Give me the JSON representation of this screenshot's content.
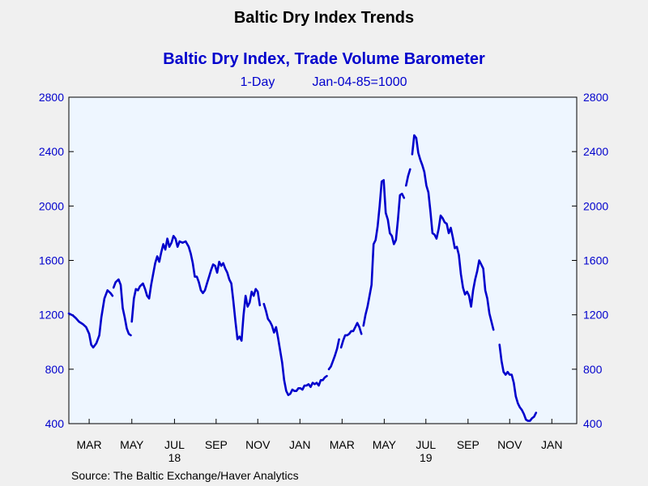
{
  "chart_data": {
    "type": "line",
    "title": "Baltic Dry Index Trends",
    "subtitle": "Baltic Dry Index, Trade Volume Barometer",
    "frequency": "1-Day",
    "base": "Jan-04-85=1000",
    "source": "Source:  The Baltic Exchange/Haver Analytics",
    "ylim": [
      400,
      2800
    ],
    "y_ticks": [
      "400",
      "800",
      "1200",
      "1600",
      "2000",
      "2400",
      "2800"
    ],
    "x_ticks": [
      {
        "label": "MAR",
        "t": 0.04
      },
      {
        "label": "MAY",
        "t": 0.124
      },
      {
        "label": "JUL",
        "t": 0.208
      },
      {
        "label": "SEP",
        "t": 0.29
      },
      {
        "label": "NOV",
        "t": 0.372
      },
      {
        "label": "JAN",
        "t": 0.455
      },
      {
        "label": "MAR",
        "t": 0.538
      },
      {
        "label": "MAY",
        "t": 0.621
      },
      {
        "label": "JUL",
        "t": 0.703
      },
      {
        "label": "SEP",
        "t": 0.786
      },
      {
        "label": "NOV",
        "t": 0.868
      },
      {
        "label": "JAN",
        "t": 0.951
      }
    ],
    "year_labels": [
      {
        "label": "18",
        "t": 0.208
      },
      {
        "label": "19",
        "t": 0.703
      }
    ],
    "series": [
      {
        "color": "#0000cc",
        "segments": [
          [
            [
              0.0,
              1210
            ],
            [
              0.008,
              1195
            ],
            [
              0.014,
              1175
            ],
            [
              0.02,
              1150
            ],
            [
              0.028,
              1130
            ],
            [
              0.034,
              1110
            ],
            [
              0.04,
              1060
            ],
            [
              0.044,
              980
            ],
            [
              0.048,
              960
            ],
            [
              0.054,
              990
            ],
            [
              0.06,
              1050
            ],
            [
              0.064,
              1180
            ],
            [
              0.07,
              1320
            ],
            [
              0.076,
              1380
            ],
            [
              0.082,
              1360
            ],
            [
              0.086,
              1340
            ]
          ],
          [
            [
              0.088,
              1400
            ],
            [
              0.092,
              1440
            ],
            [
              0.098,
              1460
            ],
            [
              0.102,
              1420
            ],
            [
              0.106,
              1250
            ],
            [
              0.11,
              1180
            ],
            [
              0.114,
              1100
            ],
            [
              0.118,
              1060
            ],
            [
              0.122,
              1050
            ]
          ],
          [
            [
              0.124,
              1150
            ],
            [
              0.128,
              1320
            ],
            [
              0.132,
              1390
            ],
            [
              0.136,
              1380
            ],
            [
              0.14,
              1410
            ],
            [
              0.146,
              1430
            ],
            [
              0.15,
              1390
            ],
            [
              0.154,
              1340
            ],
            [
              0.158,
              1320
            ],
            [
              0.162,
              1420
            ],
            [
              0.166,
              1500
            ],
            [
              0.17,
              1580
            ],
            [
              0.174,
              1630
            ],
            [
              0.178,
              1590
            ],
            [
              0.182,
              1660
            ],
            [
              0.186,
              1720
            ],
            [
              0.19,
              1680
            ],
            [
              0.194,
              1760
            ],
            [
              0.198,
              1700
            ],
            [
              0.202,
              1730
            ],
            [
              0.206,
              1780
            ],
            [
              0.21,
              1760
            ],
            [
              0.214,
              1700
            ],
            [
              0.218,
              1740
            ],
            [
              0.224,
              1730
            ],
            [
              0.23,
              1740
            ],
            [
              0.236,
              1700
            ],
            [
              0.24,
              1650
            ],
            [
              0.244,
              1580
            ],
            [
              0.248,
              1480
            ],
            [
              0.252,
              1480
            ],
            [
              0.256,
              1440
            ],
            [
              0.26,
              1380
            ],
            [
              0.264,
              1360
            ],
            [
              0.268,
              1380
            ],
            [
              0.272,
              1430
            ],
            [
              0.276,
              1480
            ],
            [
              0.28,
              1530
            ],
            [
              0.284,
              1570
            ],
            [
              0.288,
              1560
            ],
            [
              0.292,
              1510
            ],
            [
              0.296,
              1590
            ],
            [
              0.3,
              1560
            ],
            [
              0.304,
              1580
            ],
            [
              0.308,
              1540
            ],
            [
              0.312,
              1510
            ],
            [
              0.316,
              1460
            ],
            [
              0.32,
              1430
            ],
            [
              0.324,
              1300
            ],
            [
              0.328,
              1150
            ],
            [
              0.332,
              1020
            ],
            [
              0.336,
              1040
            ],
            [
              0.34,
              1010
            ],
            [
              0.344,
              1200
            ],
            [
              0.348,
              1340
            ],
            [
              0.352,
              1260
            ],
            [
              0.356,
              1290
            ],
            [
              0.36,
              1370
            ],
            [
              0.364,
              1340
            ],
            [
              0.368,
              1390
            ],
            [
              0.372,
              1370
            ],
            [
              0.376,
              1270
            ]
          ],
          [
            [
              0.384,
              1280
            ],
            [
              0.388,
              1230
            ],
            [
              0.392,
              1170
            ],
            [
              0.396,
              1150
            ],
            [
              0.4,
              1120
            ],
            [
              0.404,
              1070
            ],
            [
              0.408,
              1110
            ],
            [
              0.412,
              1030
            ],
            [
              0.416,
              940
            ],
            [
              0.42,
              850
            ],
            [
              0.424,
              720
            ],
            [
              0.428,
              640
            ],
            [
              0.432,
              610
            ],
            [
              0.436,
              620
            ],
            [
              0.44,
              650
            ],
            [
              0.444,
              640
            ],
            [
              0.448,
              640
            ],
            [
              0.452,
              660
            ],
            [
              0.456,
              660
            ],
            [
              0.46,
              650
            ],
            [
              0.464,
              680
            ],
            [
              0.468,
              680
            ],
            [
              0.472,
              690
            ],
            [
              0.476,
              670
            ],
            [
              0.48,
              700
            ],
            [
              0.484,
              690
            ],
            [
              0.488,
              700
            ],
            [
              0.492,
              680
            ],
            [
              0.496,
              720
            ],
            [
              0.5,
              720
            ],
            [
              0.504,
              740
            ],
            [
              0.508,
              750
            ]
          ],
          [
            [
              0.512,
              800
            ],
            [
              0.516,
              820
            ],
            [
              0.52,
              860
            ],
            [
              0.524,
              900
            ],
            [
              0.528,
              950
            ],
            [
              0.532,
              1020
            ]
          ],
          [
            [
              0.536,
              960
            ],
            [
              0.54,
              1010
            ],
            [
              0.544,
              1050
            ],
            [
              0.548,
              1050
            ],
            [
              0.552,
              1060
            ],
            [
              0.556,
              1080
            ],
            [
              0.56,
              1080
            ],
            [
              0.564,
              1110
            ],
            [
              0.568,
              1140
            ],
            [
              0.572,
              1110
            ],
            [
              0.576,
              1060
            ]
          ],
          [
            [
              0.58,
              1120
            ],
            [
              0.584,
              1200
            ],
            [
              0.588,
              1260
            ],
            [
              0.592,
              1340
            ],
            [
              0.596,
              1420
            ],
            [
              0.6,
              1720
            ],
            [
              0.604,
              1750
            ],
            [
              0.608,
              1850
            ],
            [
              0.612,
              2000
            ],
            [
              0.616,
              2180
            ],
            [
              0.62,
              2190
            ],
            [
              0.624,
              1950
            ],
            [
              0.628,
              1900
            ],
            [
              0.632,
              1800
            ],
            [
              0.636,
              1780
            ],
            [
              0.64,
              1720
            ],
            [
              0.644,
              1750
            ],
            [
              0.648,
              1900
            ],
            [
              0.652,
              2080
            ],
            [
              0.656,
              2090
            ],
            [
              0.66,
              2060
            ]
          ],
          [
            [
              0.664,
              2150
            ],
            [
              0.668,
              2220
            ],
            [
              0.672,
              2270
            ]
          ],
          [
            [
              0.676,
              2380
            ],
            [
              0.68,
              2520
            ],
            [
              0.684,
              2500
            ],
            [
              0.688,
              2390
            ],
            [
              0.692,
              2340
            ],
            [
              0.696,
              2300
            ],
            [
              0.7,
              2250
            ],
            [
              0.704,
              2150
            ],
            [
              0.708,
              2100
            ],
            [
              0.712,
              1960
            ],
            [
              0.716,
              1800
            ],
            [
              0.72,
              1790
            ],
            [
              0.724,
              1760
            ],
            [
              0.728,
              1830
            ],
            [
              0.732,
              1930
            ],
            [
              0.736,
              1910
            ],
            [
              0.74,
              1880
            ],
            [
              0.744,
              1870
            ],
            [
              0.748,
              1800
            ],
            [
              0.752,
              1840
            ],
            [
              0.756,
              1770
            ],
            [
              0.76,
              1690
            ],
            [
              0.764,
              1700
            ],
            [
              0.768,
              1640
            ],
            [
              0.772,
              1500
            ],
            [
              0.776,
              1400
            ],
            [
              0.78,
              1350
            ],
            [
              0.784,
              1370
            ],
            [
              0.788,
              1340
            ],
            [
              0.792,
              1260
            ],
            [
              0.796,
              1380
            ],
            [
              0.8,
              1460
            ],
            [
              0.804,
              1520
            ],
            [
              0.808,
              1600
            ],
            [
              0.812,
              1570
            ],
            [
              0.816,
              1540
            ],
            [
              0.82,
              1380
            ],
            [
              0.824,
              1320
            ],
            [
              0.828,
              1210
            ],
            [
              0.832,
              1150
            ],
            [
              0.836,
              1090
            ]
          ],
          [
            [
              0.848,
              980
            ],
            [
              0.852,
              860
            ],
            [
              0.856,
              780
            ],
            [
              0.86,
              760
            ],
            [
              0.864,
              780
            ],
            [
              0.868,
              760
            ],
            [
              0.872,
              760
            ],
            [
              0.876,
              700
            ],
            [
              0.88,
              600
            ],
            [
              0.884,
              550
            ],
            [
              0.888,
              520
            ],
            [
              0.892,
              500
            ],
            [
              0.896,
              470
            ],
            [
              0.9,
              430
            ],
            [
              0.904,
              420
            ],
            [
              0.908,
              420
            ],
            [
              0.912,
              440
            ],
            [
              0.916,
              450
            ],
            [
              0.92,
              480
            ]
          ]
        ]
      }
    ]
  }
}
